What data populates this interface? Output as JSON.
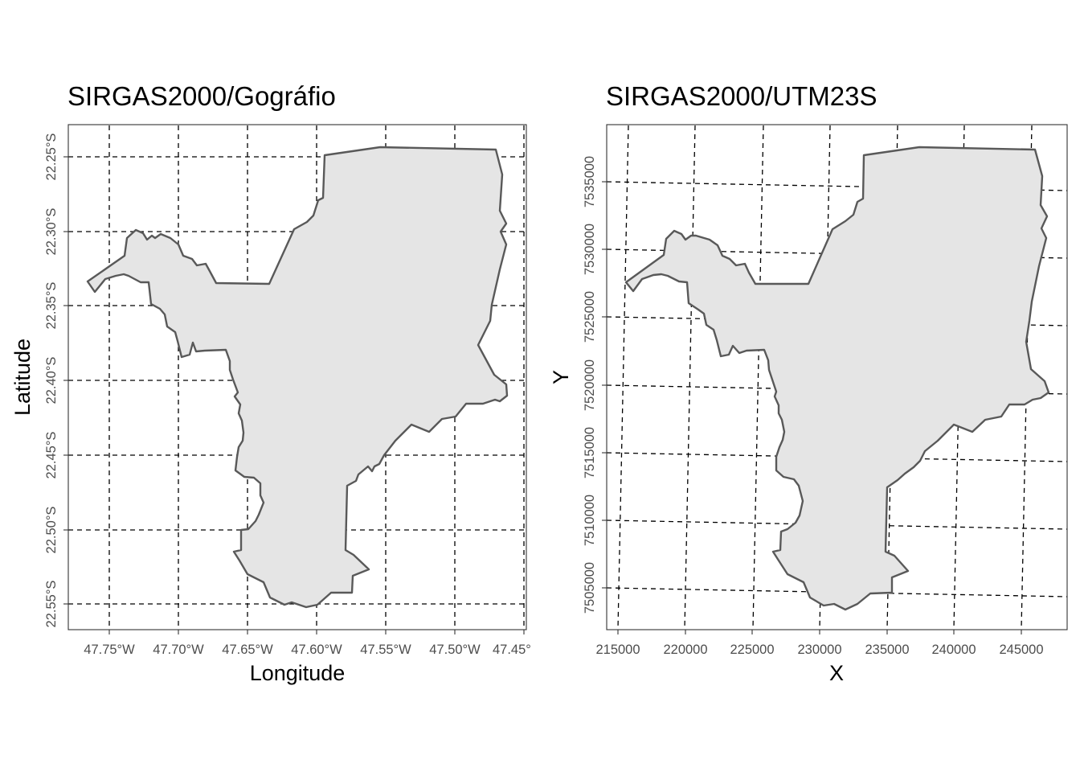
{
  "left_panel": {
    "title": "SIRGAS2000/Gográfio",
    "x_title": "Longitude",
    "y_title": "Latitude",
    "x_ticks": [
      "47.75°W",
      "47.70°W",
      "47.65°W",
      "47.60°W",
      "47.55°W",
      "47.50°W",
      "47.45°"
    ],
    "y_ticks": [
      "22.25°S",
      "22.30°S",
      "22.35°S",
      "22.40°S",
      "22.45°S",
      "22.50°S",
      "22.55°S"
    ]
  },
  "right_panel": {
    "title": "SIRGAS2000/UTM23S",
    "x_title": "X",
    "y_title": "Y",
    "x_ticks": [
      "215000",
      "220000",
      "225000",
      "230000",
      "235000",
      "240000",
      "245000"
    ],
    "y_ticks": [
      "7505000",
      "7510000",
      "7515000",
      "7520000",
      "7525000",
      "7530000",
      "7535000"
    ]
  },
  "colors": {
    "fill": "#e5e5e5",
    "outline": "#595959",
    "graticule": "#000000"
  }
}
